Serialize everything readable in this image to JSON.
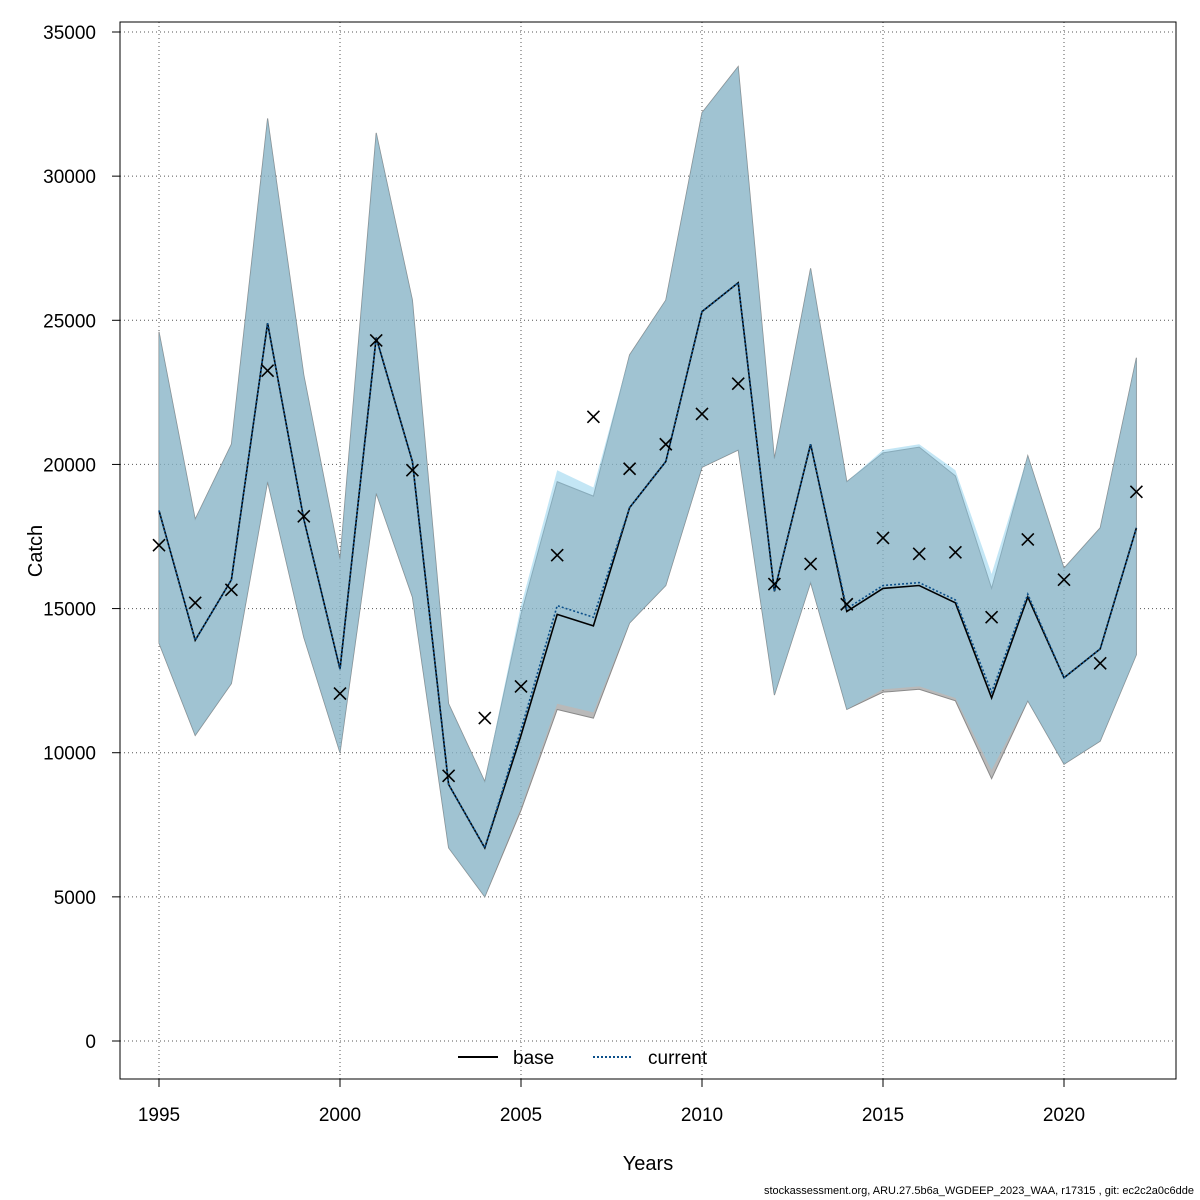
{
  "chart_data": {
    "type": "line",
    "title": "",
    "xlabel": "Years",
    "ylabel": "Catch",
    "xlim": [
      1994,
      2023
    ],
    "ylim": [
      -1500,
      36000
    ],
    "x_ticks": [
      1995,
      2000,
      2005,
      2010,
      2015,
      2020
    ],
    "y_ticks": [
      0,
      5000,
      10000,
      15000,
      20000,
      25000,
      30000,
      35000
    ],
    "grid": true,
    "legend_position": "bottom-center",
    "x": [
      1995,
      1996,
      1997,
      1998,
      1999,
      2000,
      2001,
      2002,
      2003,
      2004,
      2005,
      2006,
      2007,
      2008,
      2009,
      2010,
      2011,
      2012,
      2013,
      2014,
      2015,
      2016,
      2017,
      2018,
      2019,
      2020,
      2021,
      2022
    ],
    "series": [
      {
        "name": "base",
        "line_style": "solid",
        "color": "#000000",
        "band_color": "#7f7f7f",
        "values": [
          18400,
          13900,
          16000,
          24900,
          18100,
          12900,
          24400,
          20100,
          8900,
          6700,
          10600,
          14800,
          14400,
          18500,
          20100,
          25300,
          26300,
          15600,
          20700,
          14900,
          15700,
          15800,
          15200,
          11900,
          15400,
          12600,
          13600,
          17800
        ],
        "lower": [
          13800,
          10600,
          12400,
          19400,
          14000,
          10000,
          19000,
          15400,
          6700,
          5000,
          8000,
          11500,
          11200,
          14500,
          15800,
          19900,
          20500,
          12000,
          15900,
          11500,
          12100,
          12200,
          11800,
          9100,
          11800,
          9600,
          10400,
          13400
        ],
        "upper": [
          24600,
          18100,
          20700,
          32000,
          23100,
          16700,
          31500,
          25700,
          11700,
          9000,
          14800,
          19400,
          18900,
          23800,
          25700,
          32200,
          33800,
          20200,
          26800,
          19400,
          20400,
          20600,
          19600,
          15700,
          20300,
          16400,
          17800,
          23700
        ]
      },
      {
        "name": "current",
        "line_style": "dotted",
        "color": "#0b4f8a",
        "band_color": "#87ceeb",
        "values": [
          18400,
          13900,
          16000,
          24900,
          18100,
          12900,
          24400,
          20100,
          8900,
          6700,
          10800,
          15100,
          14700,
          18500,
          20100,
          25300,
          26300,
          15600,
          20700,
          15000,
          15800,
          15900,
          15300,
          12100,
          15500,
          12600,
          13600,
          17800
        ],
        "lower": [
          13800,
          10600,
          12400,
          19400,
          14000,
          10000,
          19000,
          15400,
          6700,
          5000,
          8100,
          11700,
          11400,
          14500,
          15800,
          19900,
          20500,
          12000,
          15900,
          11500,
          12200,
          12300,
          11900,
          9400,
          11800,
          9600,
          10400,
          13400
        ],
        "upper": [
          24600,
          18100,
          20700,
          32000,
          23100,
          16700,
          31500,
          25700,
          11700,
          9000,
          15100,
          19800,
          19200,
          23800,
          25700,
          32200,
          33800,
          20200,
          26800,
          19400,
          20500,
          20700,
          19800,
          16200,
          20300,
          16400,
          17800,
          23700
        ]
      }
    ],
    "observed": {
      "marker": "x",
      "values": [
        17200,
        15200,
        15650,
        23250,
        18200,
        12050,
        24300,
        19800,
        9200,
        11200,
        12300,
        16850,
        21650,
        19850,
        20700,
        21750,
        22800,
        15850,
        16550,
        15150,
        17450,
        16900,
        16950,
        14700,
        17400,
        16000,
        13100,
        19050
      ]
    }
  },
  "footer_text": "stockassessment.org, ARU.27.5b6a_WGDEEP_2023_WAA, r17315 , git: ec2c2a0c6dde"
}
